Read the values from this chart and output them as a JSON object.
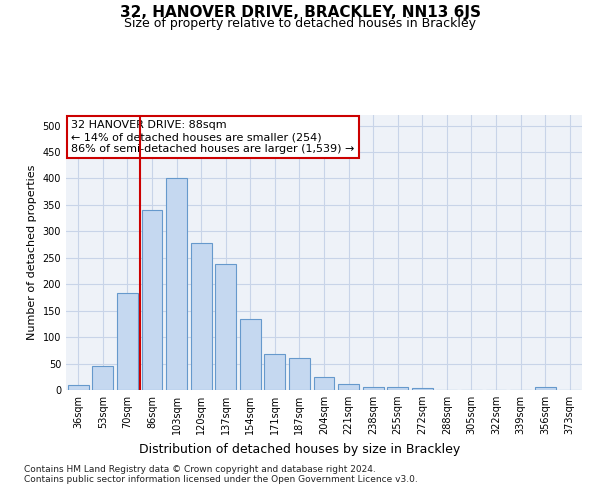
{
  "title": "32, HANOVER DRIVE, BRACKLEY, NN13 6JS",
  "subtitle": "Size of property relative to detached houses in Brackley",
  "xlabel": "Distribution of detached houses by size in Brackley",
  "ylabel": "Number of detached properties",
  "categories": [
    "36sqm",
    "53sqm",
    "70sqm",
    "86sqm",
    "103sqm",
    "120sqm",
    "137sqm",
    "154sqm",
    "171sqm",
    "187sqm",
    "204sqm",
    "221sqm",
    "238sqm",
    "255sqm",
    "272sqm",
    "288sqm",
    "305sqm",
    "322sqm",
    "339sqm",
    "356sqm",
    "373sqm"
  ],
  "values": [
    10,
    46,
    183,
    340,
    400,
    278,
    238,
    135,
    68,
    60,
    25,
    12,
    6,
    5,
    4,
    0,
    0,
    0,
    0,
    5,
    0
  ],
  "bar_color": "#c5d8f0",
  "bar_edge_color": "#6699cc",
  "vline_index": 3,
  "vline_color": "#cc0000",
  "annotation_text": "32 HANOVER DRIVE: 88sqm\n← 14% of detached houses are smaller (254)\n86% of semi-detached houses are larger (1,539) →",
  "annotation_box_color": "#ffffff",
  "annotation_box_edge": "#cc0000",
  "ylim": [
    0,
    520
  ],
  "yticks": [
    0,
    50,
    100,
    150,
    200,
    250,
    300,
    350,
    400,
    450,
    500
  ],
  "grid_color": "#c8d4e8",
  "background_color": "#eef2f8",
  "footer": "Contains HM Land Registry data © Crown copyright and database right 2024.\nContains public sector information licensed under the Open Government Licence v3.0.",
  "title_fontsize": 11,
  "subtitle_fontsize": 9,
  "ylabel_fontsize": 8,
  "xlabel_fontsize": 9,
  "tick_fontsize": 7,
  "annotation_fontsize": 8
}
